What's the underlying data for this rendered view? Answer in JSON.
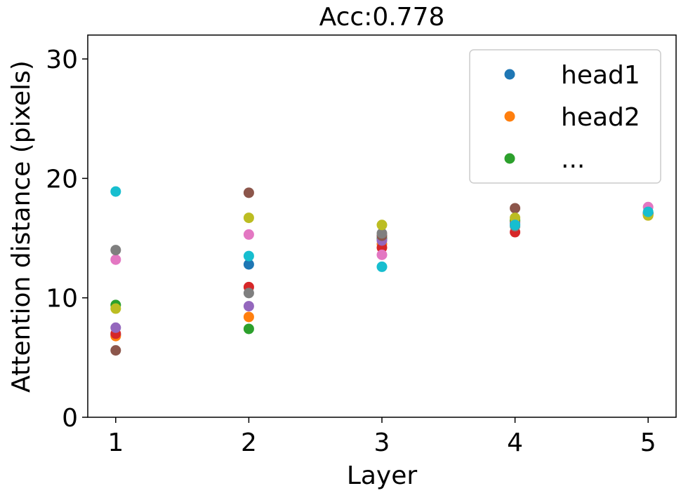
{
  "chart_data": {
    "type": "scatter",
    "title": "Acc:0.778",
    "x_label": "Layer",
    "y_label": "Attention distance (pixels)",
    "x": [
      1,
      2,
      3,
      4,
      5
    ],
    "xlim": [
      0.79,
      5.21
    ],
    "xticks": [
      1,
      2,
      3,
      4,
      5
    ],
    "ylim": [
      0,
      32
    ],
    "yticks": [
      0,
      10,
      20,
      30
    ],
    "legend": "upper right",
    "series": [
      {
        "name": "head1",
        "color": "#1f77b4",
        "values": [
          6.9,
          12.8,
          15.0,
          16.3,
          17.1
        ]
      },
      {
        "name": "head2",
        "color": "#ff7f0e",
        "values": [
          6.8,
          8.4,
          14.5,
          16.4,
          16.9
        ]
      },
      {
        "name": "...",
        "color": "#2ca02c",
        "values": [
          9.4,
          7.4,
          14.9,
          16.5,
          17.1
        ]
      },
      {
        "color": "#d62728",
        "values": [
          7.0,
          10.9,
          14.2,
          15.5,
          17.0
        ]
      },
      {
        "color": "#9467bd",
        "values": [
          7.5,
          9.3,
          14.8,
          16.2,
          17.1
        ]
      },
      {
        "color": "#8c564b",
        "values": [
          5.6,
          18.8,
          15.2,
          17.5,
          17.0
        ]
      },
      {
        "color": "#e377c2",
        "values": [
          13.2,
          15.3,
          13.6,
          16.1,
          17.6
        ]
      },
      {
        "color": "#7f7f7f",
        "values": [
          14.0,
          10.4,
          15.4,
          16.0,
          17.1
        ]
      },
      {
        "color": "#bcbd22",
        "values": [
          9.1,
          16.7,
          16.1,
          16.7,
          16.9
        ]
      },
      {
        "color": "#17becf",
        "values": [
          18.9,
          13.5,
          12.6,
          16.1,
          17.2
        ]
      }
    ]
  }
}
